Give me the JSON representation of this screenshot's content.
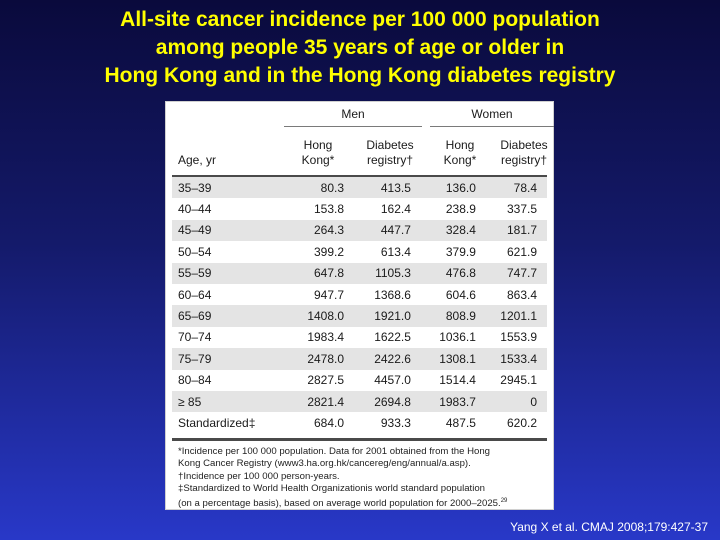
{
  "title_lines": [
    "All-site cancer incidence per 100 000 population",
    "among  people  35 years of  age or  older in",
    "Hong Kong and in the Hong Kong diabetes registry"
  ],
  "table": {
    "groups": {
      "men": "Men",
      "women": "Women"
    },
    "headers": {
      "age": "Age, yr",
      "hk_line1": "Hong",
      "hk_line2": "Kong*",
      "dr_line1": "Diabetes",
      "dr_line2": "registry†"
    },
    "rows": [
      {
        "age": "35–39",
        "men_hk": "80.3",
        "men_dr": "413.5",
        "women_hk": "136.0",
        "women_dr": "78.4"
      },
      {
        "age": "40–44",
        "men_hk": "153.8",
        "men_dr": "162.4",
        "women_hk": "238.9",
        "women_dr": "337.5"
      },
      {
        "age": "45–49",
        "men_hk": "264.3",
        "men_dr": "447.7",
        "women_hk": "328.4",
        "women_dr": "181.7"
      },
      {
        "age": "50–54",
        "men_hk": "399.2",
        "men_dr": "613.4",
        "women_hk": "379.9",
        "women_dr": "621.9"
      },
      {
        "age": "55–59",
        "men_hk": "647.8",
        "men_dr": "1105.3",
        "women_hk": "476.8",
        "women_dr": "747.7"
      },
      {
        "age": "60–64",
        "men_hk": "947.7",
        "men_dr": "1368.6",
        "women_hk": "604.6",
        "women_dr": "863.4"
      },
      {
        "age": "65–69",
        "men_hk": "1408.0",
        "men_dr": "1921.0",
        "women_hk": "808.9",
        "women_dr": "1201.1"
      },
      {
        "age": "70–74",
        "men_hk": "1983.4",
        "men_dr": "1622.5",
        "women_hk": "1036.1",
        "women_dr": "1553.9"
      },
      {
        "age": "75–79",
        "men_hk": "2478.0",
        "men_dr": "2422.6",
        "women_hk": "1308.1",
        "women_dr": "1533.4"
      },
      {
        "age": "80–84",
        "men_hk": "2827.5",
        "men_dr": "4457.0",
        "women_hk": "1514.4",
        "women_dr": "2945.1"
      },
      {
        "age": "≥ 85",
        "men_hk": "2821.4",
        "men_dr": "2694.8",
        "women_hk": "1983.7",
        "women_dr": "0"
      },
      {
        "age": "Standardized‡",
        "men_hk": "684.0",
        "men_dr": "933.3",
        "women_hk": "487.5",
        "women_dr": "620.2"
      }
    ],
    "footnotes": [
      "*Incidence per 100 000 population. Data for 2001 obtained from the Hong",
      "Kong Cancer Registry (www3.ha.org.hk/cancereg/eng/annual/a.asp).",
      "†Incidence per 100 000 person-years.",
      "‡Standardized to World Health Organizationis world standard population",
      "(on a percentage basis), based on average world population for 2000–2025.",
      "29"
    ]
  },
  "citation": "Yang X et al. CMAJ 2008;179:427-37"
}
